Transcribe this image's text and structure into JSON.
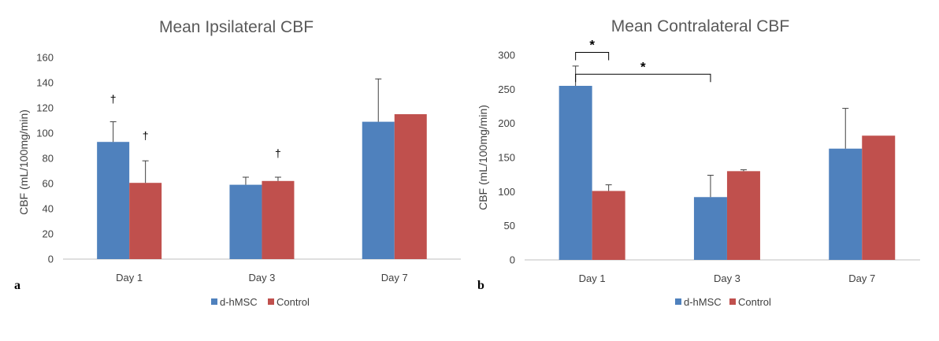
{
  "colors": {
    "dhmsc": "#4f81bd",
    "control": "#c0504d",
    "axis": "#404040",
    "bracket": "#000000"
  },
  "chart_data": [
    {
      "type": "bar",
      "panel": "a",
      "title": "Mean Ipsilateral CBF",
      "ylabel": "CBF (mL/100mg/min)",
      "xlabel": "",
      "categories": [
        "Day 1",
        "Day 3",
        "Day 7"
      ],
      "ylim": [
        0,
        160
      ],
      "yticks": [
        "0",
        "20",
        "40",
        "60",
        "80",
        "100",
        "120",
        "140",
        "160"
      ],
      "legend_position": "bottom",
      "series": [
        {
          "name": "d-hMSC",
          "color": "#4f81bd",
          "values": [
            93,
            59,
            109
          ],
          "errors": [
            16,
            6,
            34
          ]
        },
        {
          "name": "Control",
          "color": "#c0504d",
          "values": [
            60.5,
            62,
            115
          ],
          "errors": [
            17.5,
            3,
            0
          ]
        }
      ],
      "annotations": [
        {
          "text": "†",
          "series": 0,
          "category": 0,
          "value": 124
        },
        {
          "text": "†",
          "series": 1,
          "category": 0,
          "value": 95
        },
        {
          "text": "†",
          "series": 1,
          "category": 1,
          "value": 81
        }
      ]
    },
    {
      "type": "bar",
      "panel": "b",
      "title": "Mean Contralateral CBF",
      "ylabel": "CBF (mL/100mg/min)",
      "xlabel": "",
      "categories": [
        "Day 1",
        "Day 3",
        "Day 7"
      ],
      "ylim": [
        0,
        300
      ],
      "yticks": [
        "0",
        "50",
        "100",
        "150",
        "200",
        "250",
        "300"
      ],
      "legend_position": "bottom",
      "series": [
        {
          "name": "d-hMSC",
          "color": "#4f81bd",
          "values": [
            255,
            92,
            163
          ],
          "errors": [
            29,
            32,
            59
          ]
        },
        {
          "name": "Control",
          "color": "#c0504d",
          "values": [
            101,
            130,
            182
          ],
          "errors": [
            9,
            2,
            0
          ]
        }
      ],
      "brackets": [
        {
          "text": "*",
          "from": {
            "series": 0,
            "category": 0
          },
          "to": {
            "series": 1,
            "category": 0
          },
          "level": 304
        },
        {
          "text": "*",
          "from": {
            "series": 0,
            "category": 0
          },
          "to": {
            "series": 0,
            "category": 1
          },
          "level": 272
        }
      ]
    }
  ]
}
